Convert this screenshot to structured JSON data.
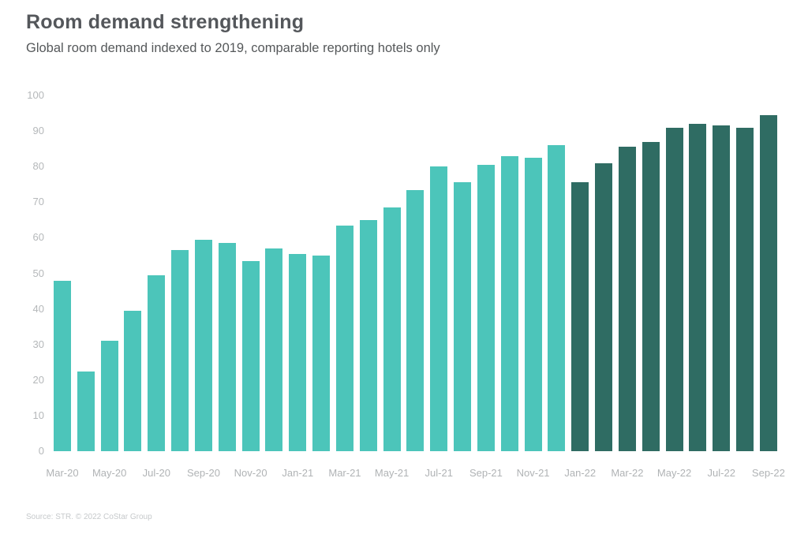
{
  "header": {
    "title": "Room demand strengthening",
    "subtitle": "Global room demand indexed to 2019, comparable reporting hotels only"
  },
  "footer": {
    "source": "Source: STR. © 2022 CoStar Group"
  },
  "colors": {
    "bar_light_teal": "#4CC5BA",
    "bar_dark_teal": "#2F6C63",
    "title_text": "#54575b",
    "axis_text": "#b5b8ba",
    "source_text": "#c6c9cb",
    "background": "#ffffff"
  },
  "chart_data": {
    "type": "bar",
    "title": "Room demand strengthening",
    "subtitle": "Global room demand indexed to 2019, comparable reporting hotels only",
    "xlabel": "",
    "ylabel": "",
    "ylim": [
      0,
      100
    ],
    "y_ticks": [
      0,
      10,
      20,
      30,
      40,
      50,
      60,
      70,
      80,
      90,
      100
    ],
    "x_tick_every": 2,
    "grid": false,
    "legend_position": "none",
    "categories": [
      "Mar-20",
      "Apr-20",
      "May-20",
      "Jun-20",
      "Jul-20",
      "Aug-20",
      "Sep-20",
      "Oct-20",
      "Nov-20",
      "Dec-20",
      "Jan-21",
      "Feb-21",
      "Mar-21",
      "Apr-21",
      "May-21",
      "Jun-21",
      "Jul-21",
      "Aug-21",
      "Sep-21",
      "Oct-21",
      "Nov-21",
      "Dec-21",
      "Jan-22",
      "Feb-22",
      "Mar-22",
      "Apr-22",
      "May-22",
      "Jun-22",
      "Jul-22",
      "Aug-22",
      "Sep-22"
    ],
    "values": [
      48,
      22.5,
      31,
      39.5,
      49.5,
      56.5,
      59.5,
      58.5,
      53.5,
      57,
      55.5,
      55,
      63.5,
      65,
      68.5,
      73.5,
      80,
      75.5,
      80.5,
      83,
      82.5,
      86,
      75.5,
      81,
      85.5,
      87,
      91,
      92,
      91.5,
      91,
      94.5
    ],
    "bar_color_light": "#4CC5BA",
    "bar_color_dark": "#2F6C63",
    "dark_from_category": "Jan-22"
  }
}
